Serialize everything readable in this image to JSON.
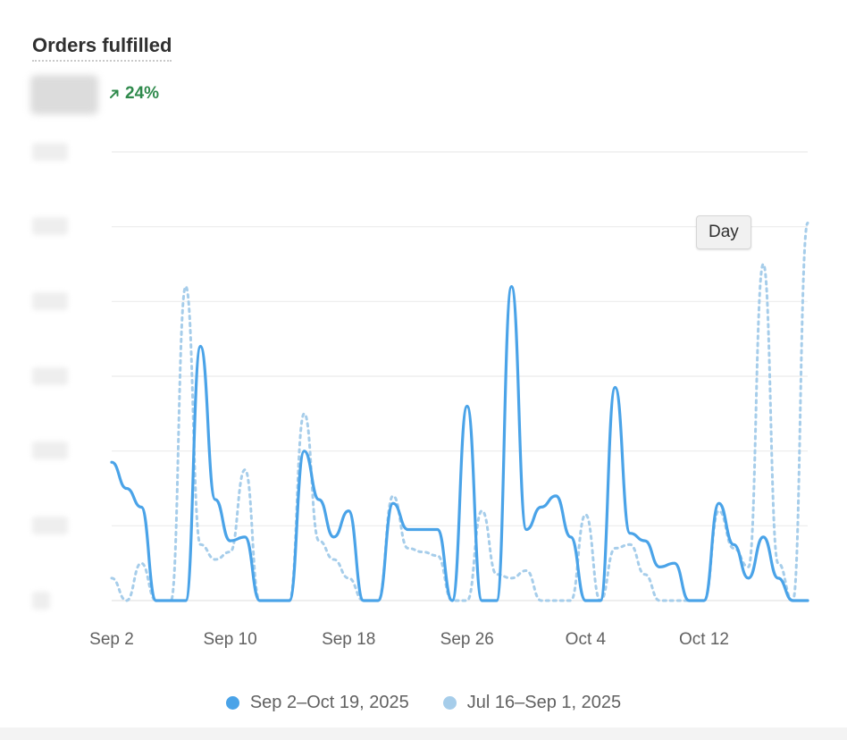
{
  "card": {
    "title": "Orders fulfilled",
    "change_percent": "24%",
    "change_direction": "up",
    "change_color": "#2f8a4c"
  },
  "tooltip": {
    "label": "Day"
  },
  "legend": [
    {
      "label": "Sep 2–Oct 19, 2025",
      "color": "#4aa3e8"
    },
    {
      "label": "Jul 16–Sep 1, 2025",
      "color": "#a6cdea"
    }
  ],
  "chart_data": {
    "type": "line",
    "x_labels": [
      "Sep 2",
      "Sep 10",
      "Sep 18",
      "Sep 26",
      "Oct 4",
      "Oct 12"
    ],
    "x_label_index": [
      0,
      8,
      16,
      24,
      32,
      40
    ],
    "y_axis_labels_obscured": true,
    "ylim": [
      0,
      6
    ],
    "grid": true,
    "series": [
      {
        "name": "Sep 2–Oct 19, 2025",
        "style": "solid",
        "color": "#4aa3e8",
        "values": [
          1.85,
          1.5,
          1.25,
          0,
          0,
          0,
          3.4,
          1.35,
          0.8,
          0.85,
          0,
          0,
          0,
          2.0,
          1.35,
          0.85,
          1.2,
          0,
          0,
          1.3,
          0.95,
          0.95,
          0.95,
          0,
          2.6,
          0,
          0,
          4.2,
          0.95,
          1.25,
          1.4,
          0.85,
          0,
          0,
          2.85,
          0.9,
          0.8,
          0.45,
          0.5,
          0,
          0,
          1.3,
          0.75,
          0.3,
          0.85,
          0.3,
          0,
          0
        ]
      },
      {
        "name": "Jul 16–Sep 1, 2025",
        "style": "dotted",
        "color": "#a6cdea",
        "values": [
          0.3,
          0,
          0.5,
          0,
          0,
          4.2,
          0.75,
          0.55,
          0.65,
          1.75,
          0,
          0,
          0,
          2.5,
          0.8,
          0.55,
          0.3,
          0,
          0,
          1.4,
          0.7,
          0.65,
          0.6,
          0,
          0,
          1.2,
          0.35,
          0.3,
          0.4,
          0,
          0,
          0,
          1.15,
          0,
          0.7,
          0.75,
          0.35,
          0,
          0,
          0,
          0,
          1.2,
          0.7,
          0.45,
          4.5,
          0.5,
          0,
          5.05
        ]
      }
    ]
  }
}
